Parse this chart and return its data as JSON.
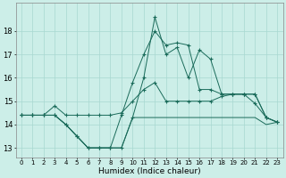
{
  "xlabel": "Humidex (Indice chaleur)",
  "background_color": "#cceee8",
  "grid_color": "#a8d8d0",
  "line_color": "#1a6b5a",
  "x": [
    0,
    1,
    2,
    3,
    4,
    5,
    6,
    7,
    8,
    9,
    10,
    11,
    12,
    13,
    14,
    15,
    16,
    17,
    18,
    19,
    20,
    21,
    22,
    23
  ],
  "line1": [
    14.4,
    14.4,
    14.4,
    14.8,
    14.4,
    14.4,
    14.4,
    14.4,
    14.4,
    14.5,
    15.0,
    15.5,
    15.8,
    15.0,
    15.0,
    15.0,
    15.0,
    15.0,
    15.2,
    15.3,
    15.3,
    15.3,
    14.3,
    14.1
  ],
  "line2": [
    14.4,
    14.4,
    14.4,
    14.4,
    14.0,
    13.5,
    13.0,
    13.0,
    13.0,
    13.0,
    14.3,
    16.0,
    18.6,
    17.0,
    17.3,
    16.0,
    17.2,
    16.8,
    15.3,
    15.3,
    15.3,
    14.9,
    14.3,
    14.1
  ],
  "line3": [
    14.4,
    14.4,
    14.4,
    14.4,
    14.0,
    13.5,
    13.0,
    13.0,
    13.0,
    13.0,
    14.3,
    14.3,
    14.3,
    14.3,
    14.3,
    14.3,
    14.3,
    14.3,
    14.3,
    14.3,
    14.3,
    14.3,
    14.0,
    14.1
  ],
  "line4": [
    14.4,
    14.4,
    14.4,
    14.4,
    14.0,
    13.5,
    13.0,
    13.0,
    13.0,
    14.4,
    15.8,
    17.0,
    18.0,
    17.4,
    17.5,
    17.4,
    15.5,
    15.5,
    15.3,
    15.3,
    15.3,
    15.3,
    14.3,
    14.1
  ],
  "ylim": [
    12.6,
    19.2
  ],
  "yticks": [
    13,
    14,
    15,
    16,
    17,
    18
  ],
  "xlim": [
    -0.5,
    23.5
  ],
  "xticks": [
    0,
    1,
    2,
    3,
    4,
    5,
    6,
    7,
    8,
    9,
    10,
    11,
    12,
    13,
    14,
    15,
    16,
    17,
    18,
    19,
    20,
    21,
    22,
    23
  ]
}
